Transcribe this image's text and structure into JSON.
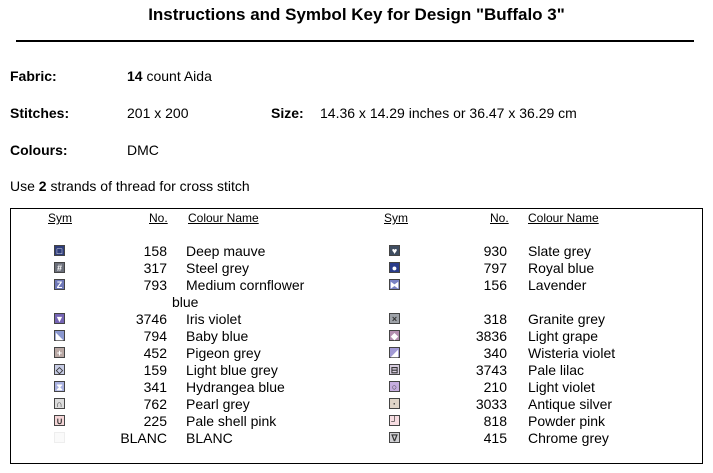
{
  "title": "Instructions and Symbol Key for Design \"Buffalo 3\"",
  "fabric": {
    "label": "Fabric:",
    "count": "14",
    "suffix": "count Aida"
  },
  "stitches": {
    "label": "Stitches:",
    "value": "201 x 200"
  },
  "size": {
    "label": "Size:",
    "value": "14.36 x 14.29 inches or 36.47 x 36.29 cm"
  },
  "colours": {
    "label": "Colours:",
    "value": "DMC"
  },
  "instruction": {
    "pre": "Use",
    "strands": "2",
    "post": "strands of thread for cross stitch"
  },
  "headers": {
    "sym": "Sym",
    "no": "No.",
    "name": "Colour Name"
  },
  "left_rows": [
    {
      "no": "158",
      "name": "Deep mauve",
      "color": "#2f3d7a",
      "glyph": "□"
    },
    {
      "no": "317",
      "name": "Steel grey",
      "color": "#6b6f7a",
      "glyph": "#"
    },
    {
      "no": "793",
      "name": "Medium cornflower",
      "name2": "blue",
      "color": "#6f78b8",
      "glyph": "Z"
    },
    {
      "no": "3746",
      "name": "Iris violet",
      "color": "#7564b4",
      "glyph": "▼"
    },
    {
      "no": "794",
      "name": "Baby blue",
      "color": "#8a97cf",
      "glyph": "◣"
    },
    {
      "no": "452",
      "name": "Pigeon grey",
      "color": "#b9a8a4",
      "glyph": "+"
    },
    {
      "no": "159",
      "name": "Light blue grey",
      "color": "#c6cbe4",
      "glyph": "◇"
    },
    {
      "no": "341",
      "name": "Hydrangea blue",
      "color": "#a9b1e0",
      "glyph": "⧗"
    },
    {
      "no": "762",
      "name": "Pearl grey",
      "color": "#dcdcdc",
      "glyph": "∩"
    },
    {
      "no": "225",
      "name": "Pale shell pink",
      "color": "#f5d6d8",
      "glyph": "∪"
    },
    {
      "no": "BLANC",
      "name": "BLANC",
      "color": "#fafafa",
      "glyph": ""
    }
  ],
  "right_rows": [
    {
      "no": "930",
      "name": "Slate grey",
      "color": "#3f4d60",
      "glyph": "♥"
    },
    {
      "no": "797",
      "name": "Royal blue",
      "color": "#2a3c8a",
      "glyph": "●"
    },
    {
      "no": "156",
      "name": "Lavender",
      "color": "#7a83c4",
      "glyph": "⧓"
    },
    {
      "no": "318",
      "name": "Granite grey",
      "color": "#9ea2a8",
      "glyph": "×"
    },
    {
      "no": "3836",
      "name": "Light grape",
      "color": "#b48fb0",
      "glyph": "◆"
    },
    {
      "no": "340",
      "name": "Wisteria violet",
      "color": "#a39bd6",
      "glyph": "◢"
    },
    {
      "no": "3743",
      "name": "Pale lilac",
      "color": "#d8cee0",
      "glyph": "⊟"
    },
    {
      "no": "210",
      "name": "Light violet",
      "color": "#c6addf",
      "glyph": "○"
    },
    {
      "no": "3033",
      "name": "Antique silver",
      "color": "#e0d5c8",
      "glyph": "·"
    },
    {
      "no": "818",
      "name": "Powder pink",
      "color": "#f7dde2",
      "glyph": "┘"
    },
    {
      "no": "415",
      "name": "Chrome grey",
      "color": "#cfcfd3",
      "glyph": "∇"
    }
  ]
}
